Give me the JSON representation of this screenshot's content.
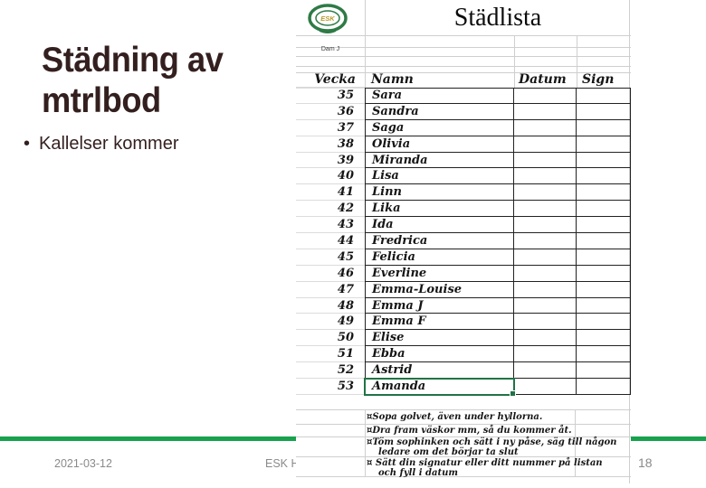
{
  "slide": {
    "title_lines": [
      "Städning av",
      "mtrlbod"
    ],
    "bullet_marker": "•",
    "bullet": "Kallelser kommer",
    "accent_color": "#17a24e",
    "title_color": "#341f1f",
    "footer": {
      "date": "2021-03-12",
      "center": "ESK Ho",
      "page": "18"
    }
  },
  "sheet": {
    "logo_text": "ESK",
    "team_label": "Dam J",
    "title": "Städlista",
    "columns": [
      "Vecka",
      "Namn",
      "Datum",
      "Sign"
    ],
    "rows": [
      {
        "week": "35",
        "name": "Sara",
        "datum": "",
        "sign": ""
      },
      {
        "week": "36",
        "name": "Sandra",
        "datum": "",
        "sign": ""
      },
      {
        "week": "37",
        "name": "Saga",
        "datum": "",
        "sign": ""
      },
      {
        "week": "38",
        "name": "Olivia",
        "datum": "",
        "sign": ""
      },
      {
        "week": "39",
        "name": "Miranda",
        "datum": "",
        "sign": ""
      },
      {
        "week": "40",
        "name": "Lisa",
        "datum": "",
        "sign": ""
      },
      {
        "week": "41",
        "name": "Linn",
        "datum": "",
        "sign": ""
      },
      {
        "week": "42",
        "name": "Lika",
        "datum": "",
        "sign": ""
      },
      {
        "week": "43",
        "name": "Ida",
        "datum": "",
        "sign": ""
      },
      {
        "week": "44",
        "name": "Fredrica",
        "datum": "",
        "sign": ""
      },
      {
        "week": "45",
        "name": "Felicia",
        "datum": "",
        "sign": ""
      },
      {
        "week": "46",
        "name": "Everline",
        "datum": "",
        "sign": ""
      },
      {
        "week": "47",
        "name": "Emma-Louise",
        "datum": "",
        "sign": ""
      },
      {
        "week": "48",
        "name": "Emma J",
        "datum": "",
        "sign": ""
      },
      {
        "week": "49",
        "name": "Emma F",
        "datum": "",
        "sign": ""
      },
      {
        "week": "50",
        "name": "Elise",
        "datum": "",
        "sign": ""
      },
      {
        "week": "51",
        "name": "Ebba",
        "datum": "",
        "sign": ""
      },
      {
        "week": "52",
        "name": "Astrid",
        "datum": "",
        "sign": ""
      },
      {
        "week": "53",
        "name": "Amanda",
        "datum": "",
        "sign": ""
      }
    ],
    "selected_row_week": "53",
    "selection_color": "#217346",
    "notes": [
      {
        "lines": [
          "¤Sopa golvet, även under hyllorna."
        ]
      },
      {
        "lines": [
          "¤Dra fram väskor mm, så du kommer åt."
        ]
      },
      {
        "lines": [
          "¤Töm sophinken och sätt i ny påse, säg till någon",
          "ledare om det börjar ta slut"
        ]
      },
      {
        "lines": [
          "¤ Sätt din signatur eller ditt nummer på listan",
          "och fyll i datum"
        ]
      }
    ]
  }
}
